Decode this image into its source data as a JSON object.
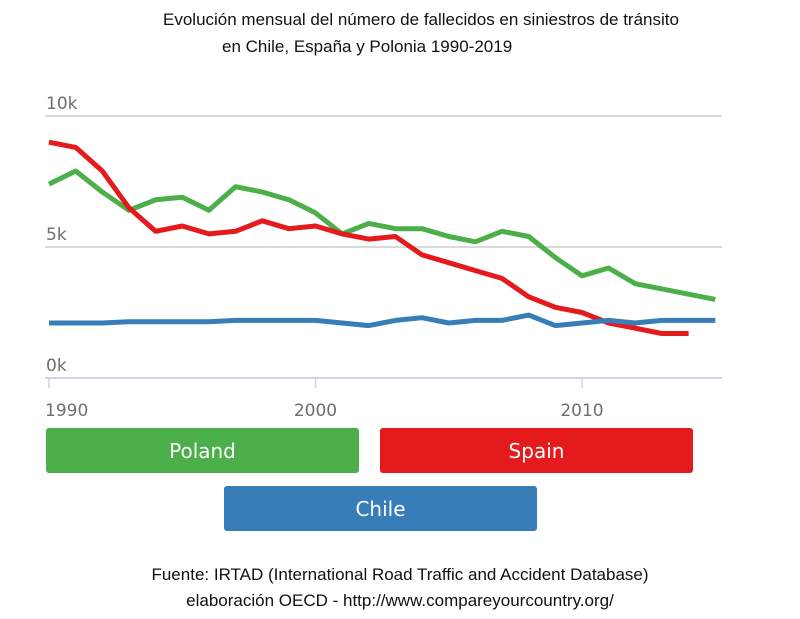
{
  "title": {
    "line1": "Evolución mensual del número de fallecidos en siniestros de tránsito",
    "line2": "en Chile, España y Polonia 1990-2019"
  },
  "source": {
    "line1": "Fuente: IRTAD (International Road Traffic and Accident Database)",
    "line2": "elaboración OECD - http://www.compareyourcountry.org/"
  },
  "legend": [
    {
      "label": "Poland",
      "color": "#4caf4a"
    },
    {
      "label": "Spain",
      "color": "#e41a1c"
    },
    {
      "label": "Chile",
      "color": "#377eb8"
    }
  ],
  "chart_data": {
    "type": "line",
    "title": "Evolución mensual del número de fallecidos en siniestros de tránsito en Chile, España y Polonia 1990-2019",
    "xlabel": "",
    "ylabel": "",
    "xlim": [
      1990,
      2015
    ],
    "ylim": [
      0,
      10000
    ],
    "x_ticks": [
      1990,
      2000,
      2010
    ],
    "x_tick_labels": [
      "1990",
      "2000",
      "2010"
    ],
    "y_ticks": [
      0,
      5000,
      10000
    ],
    "y_tick_labels": [
      "0k",
      "5k",
      "10k"
    ],
    "grid": true,
    "legend_position": "bottom",
    "series": [
      {
        "name": "Poland",
        "color": "#4caf4a",
        "x": [
          1990,
          1991,
          1992,
          1993,
          1994,
          1995,
          1996,
          1997,
          1998,
          1999,
          2000,
          2001,
          2002,
          2003,
          2004,
          2005,
          2006,
          2007,
          2008,
          2009,
          2010,
          2011,
          2012,
          2013,
          2014,
          2015
        ],
        "values": [
          7400,
          7900,
          7100,
          6400,
          6800,
          6900,
          6400,
          7300,
          7100,
          6800,
          6300,
          5500,
          5900,
          5700,
          5700,
          5400,
          5200,
          5600,
          5400,
          4600,
          3900,
          4200,
          3600,
          3400,
          3200,
          3000
        ]
      },
      {
        "name": "Spain",
        "color": "#e41a1c",
        "x": [
          1990,
          1991,
          1992,
          1993,
          1994,
          1995,
          1996,
          1997,
          1998,
          1999,
          2000,
          2001,
          2002,
          2003,
          2004,
          2005,
          2006,
          2007,
          2008,
          2009,
          2010,
          2011,
          2012,
          2013,
          2014
        ],
        "values": [
          9000,
          8800,
          7900,
          6500,
          5600,
          5800,
          5500,
          5600,
          6000,
          5700,
          5800,
          5500,
          5300,
          5400,
          4700,
          4400,
          4100,
          3800,
          3100,
          2700,
          2500,
          2100,
          1900,
          1700,
          1700
        ]
      },
      {
        "name": "Chile",
        "color": "#377eb8",
        "x": [
          1990,
          1991,
          1992,
          1993,
          1994,
          1995,
          1996,
          1997,
          1998,
          1999,
          2000,
          2001,
          2002,
          2003,
          2004,
          2005,
          2006,
          2007,
          2008,
          2009,
          2010,
          2011,
          2012,
          2013,
          2014,
          2015
        ],
        "values": [
          2100,
          2100,
          2100,
          2150,
          2150,
          2150,
          2150,
          2200,
          2200,
          2200,
          2200,
          2100,
          2000,
          2200,
          2300,
          2100,
          2200,
          2200,
          2400,
          2000,
          2100,
          2200,
          2100,
          2200,
          2200,
          2200
        ]
      }
    ]
  }
}
